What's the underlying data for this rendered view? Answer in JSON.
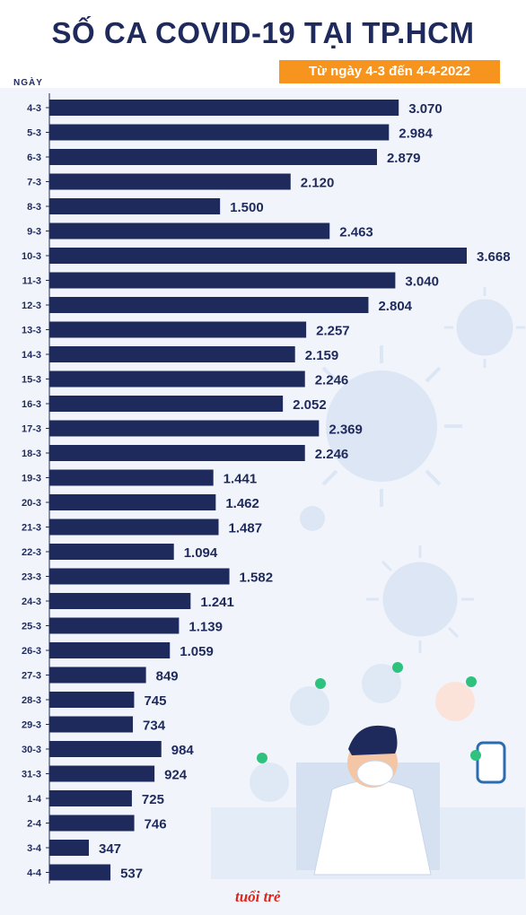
{
  "header": {
    "title": "SỐ CA COVID-19 TẠI TP.HCM",
    "subtitle": "Từ ngày 4-3 đến 4-4-2022"
  },
  "chart_data": {
    "type": "bar",
    "orientation": "horizontal",
    "title": "SỐ CA COVID-19 TẠI TP.HCM",
    "subtitle": "Từ ngày 4-3 đến 4-4-2022",
    "ylabel": "NGÀY",
    "xlabel": "",
    "xlim": [
      0,
      3668
    ],
    "grid": false,
    "bar_color": "#1f2a5c",
    "categories": [
      "4-3",
      "5-3",
      "6-3",
      "7-3",
      "8-3",
      "9-3",
      "10-3",
      "11-3",
      "12-3",
      "13-3",
      "14-3",
      "15-3",
      "16-3",
      "17-3",
      "18-3",
      "19-3",
      "20-3",
      "21-3",
      "22-3",
      "23-3",
      "24-3",
      "25-3",
      "26-3",
      "27-3",
      "28-3",
      "29-3",
      "30-3",
      "31-3",
      "1-4",
      "2-4",
      "3-4",
      "4-4"
    ],
    "values": [
      3070,
      2984,
      2879,
      2120,
      1500,
      2463,
      3668,
      3040,
      2804,
      2257,
      2159,
      2246,
      2052,
      2369,
      2246,
      1441,
      1462,
      1487,
      1094,
      1582,
      1241,
      1139,
      1059,
      849,
      745,
      734,
      984,
      924,
      725,
      746,
      347,
      537
    ],
    "data_labels": [
      "3.070",
      "2.984",
      "2.879",
      "2.120",
      "1.500",
      "2.463",
      "3.668",
      "3.040",
      "2.804",
      "2.257",
      "2.159",
      "2.246",
      "2.052",
      "2.369",
      "2.246",
      "1.441",
      "1.462",
      "1.487",
      "1.094",
      "1.582",
      "1.241",
      "1.139",
      "1.059",
      "849",
      "745",
      "734",
      "984",
      "924",
      "725",
      "746",
      "347",
      "537"
    ]
  },
  "footer": {
    "brand": "tuổi trẻ"
  }
}
